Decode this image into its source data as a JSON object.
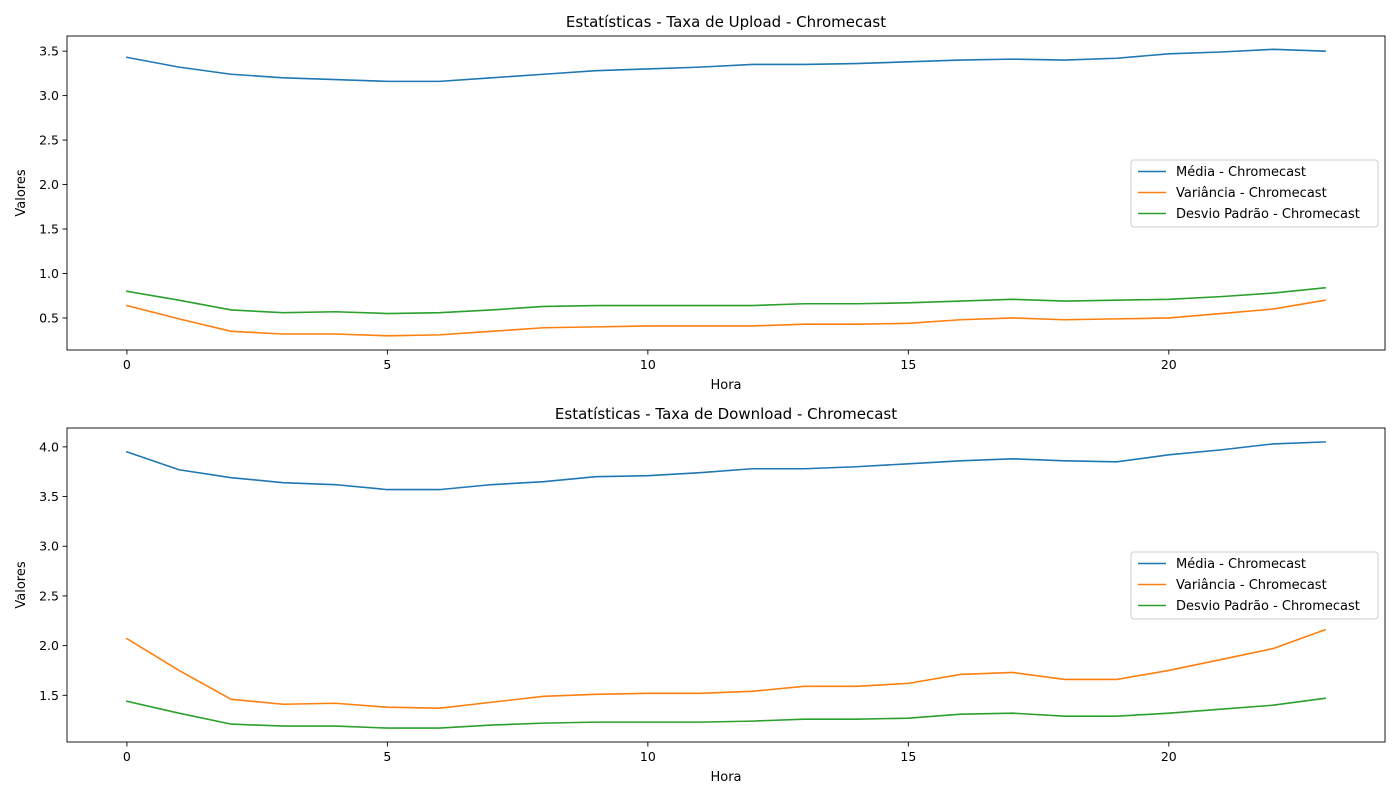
{
  "chart_data": [
    {
      "type": "line",
      "title": "Estatísticas - Taxa de Upload - Chromecast",
      "xlabel": "Hora",
      "ylabel": "Valores",
      "xlim": [
        -1.15,
        24.15
      ],
      "ylim": [
        0.14,
        3.67
      ],
      "xticks": [
        0,
        5,
        10,
        15,
        20
      ],
      "yticks": [
        0.5,
        1.0,
        1.5,
        2.0,
        2.5,
        3.0,
        3.5
      ],
      "ytick_labels": [
        "0.5",
        "1.0",
        "1.5",
        "2.0",
        "2.5",
        "3.0",
        "3.5"
      ],
      "legend_placement": "center-right",
      "x": [
        0,
        1,
        2,
        3,
        4,
        5,
        6,
        7,
        8,
        9,
        10,
        11,
        12,
        13,
        14,
        15,
        16,
        17,
        18,
        19,
        20,
        21,
        22,
        23
      ],
      "series": [
        {
          "name": "Média - Chromecast",
          "color": "#1f77b4",
          "values": [
            3.43,
            3.32,
            3.24,
            3.2,
            3.18,
            3.16,
            3.16,
            3.2,
            3.24,
            3.28,
            3.3,
            3.32,
            3.35,
            3.35,
            3.36,
            3.38,
            3.4,
            3.41,
            3.4,
            3.42,
            3.47,
            3.49,
            3.52,
            3.5
          ]
        },
        {
          "name": "Variância - Chromecast",
          "color": "#ff7f0e",
          "values": [
            0.64,
            0.49,
            0.35,
            0.32,
            0.32,
            0.3,
            0.31,
            0.35,
            0.39,
            0.4,
            0.41,
            0.41,
            0.41,
            0.43,
            0.43,
            0.44,
            0.48,
            0.5,
            0.48,
            0.49,
            0.5,
            0.55,
            0.6,
            0.7
          ]
        },
        {
          "name": "Desvio Padrão - Chromecast",
          "color": "#2ca02c",
          "values": [
            0.8,
            0.7,
            0.59,
            0.56,
            0.57,
            0.55,
            0.56,
            0.59,
            0.63,
            0.64,
            0.64,
            0.64,
            0.64,
            0.66,
            0.66,
            0.67,
            0.69,
            0.71,
            0.69,
            0.7,
            0.71,
            0.74,
            0.78,
            0.84
          ]
        }
      ]
    },
    {
      "type": "line",
      "title": "Estatísticas - Taxa de Download - Chromecast",
      "xlabel": "Hora",
      "ylabel": "Valores",
      "xlim": [
        -1.15,
        24.15
      ],
      "ylim": [
        1.03,
        4.19
      ],
      "xticks": [
        0,
        5,
        10,
        15,
        20
      ],
      "yticks": [
        1.5,
        2.0,
        2.5,
        3.0,
        3.5,
        4.0
      ],
      "ytick_labels": [
        "1.5",
        "2.0",
        "2.5",
        "3.0",
        "3.5",
        "4.0"
      ],
      "legend_placement": "center-right",
      "x": [
        0,
        1,
        2,
        3,
        4,
        5,
        6,
        7,
        8,
        9,
        10,
        11,
        12,
        13,
        14,
        15,
        16,
        17,
        18,
        19,
        20,
        21,
        22,
        23
      ],
      "series": [
        {
          "name": "Média - Chromecast",
          "color": "#1f77b4",
          "values": [
            3.95,
            3.77,
            3.69,
            3.64,
            3.62,
            3.57,
            3.57,
            3.62,
            3.65,
            3.7,
            3.71,
            3.74,
            3.78,
            3.78,
            3.8,
            3.83,
            3.86,
            3.88,
            3.86,
            3.85,
            3.92,
            3.97,
            4.03,
            4.05
          ]
        },
        {
          "name": "Variância - Chromecast",
          "color": "#ff7f0e",
          "values": [
            2.07,
            1.75,
            1.46,
            1.41,
            1.42,
            1.38,
            1.37,
            1.43,
            1.49,
            1.51,
            1.52,
            1.52,
            1.54,
            1.59,
            1.59,
            1.62,
            1.71,
            1.73,
            1.66,
            1.66,
            1.75,
            1.86,
            1.97,
            2.16
          ]
        },
        {
          "name": "Desvio Padrão - Chromecast",
          "color": "#2ca02c",
          "values": [
            1.44,
            1.32,
            1.21,
            1.19,
            1.19,
            1.17,
            1.17,
            1.2,
            1.22,
            1.23,
            1.23,
            1.23,
            1.24,
            1.26,
            1.26,
            1.27,
            1.31,
            1.32,
            1.29,
            1.29,
            1.32,
            1.36,
            1.4,
            1.47
          ]
        }
      ]
    }
  ]
}
